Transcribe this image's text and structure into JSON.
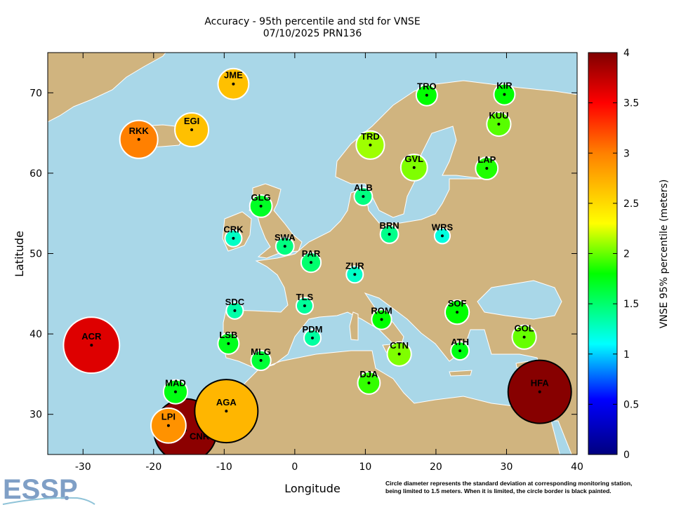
{
  "title": {
    "line1": "Accuracy - 95th percentile and std for VNSE",
    "line2": "07/10/2025 PRN136"
  },
  "logo": "ESSP",
  "note": {
    "line1": "Circle diameter represents the standard deviation at corresponding monitoring station,",
    "line2": "being limited to 1.5 meters. When it is limited, the circle border is black painted."
  },
  "colors": {
    "ocean": "#a9d7e8",
    "land": "#d0b47f",
    "coast": "#ffffff",
    "limited_border": "#000000",
    "normal_border": "#ffffff",
    "logo": "#7f9fc6"
  },
  "chart_data": {
    "type": "scatter",
    "xlabel": "Longitude",
    "ylabel": "Latitude",
    "xlim": [
      -35,
      40
    ],
    "ylim": [
      25,
      75
    ],
    "xticks": [
      -30,
      -20,
      -10,
      0,
      10,
      20,
      30,
      40
    ],
    "yticks": [
      30,
      40,
      50,
      60,
      70
    ],
    "grid": false,
    "colorbar": {
      "label": "VNSE 95% percentile (meters)",
      "range": [
        0,
        4
      ],
      "ticks": [
        "0",
        "0.5",
        "1",
        "1.5",
        "2",
        "2.5",
        "3",
        "3.5",
        "4"
      ],
      "colormap": "jet",
      "stops": [
        {
          "v": 0,
          "color": "#00007f"
        },
        {
          "v": 0.55,
          "color": "#0000ff"
        },
        {
          "v": 1.1,
          "color": "#00ffff"
        },
        {
          "v": 1.8,
          "color": "#00ff00"
        },
        {
          "v": 2.3,
          "color": "#ffff00"
        },
        {
          "v": 3.0,
          "color": "#ff8000"
        },
        {
          "v": 3.5,
          "color": "#ff0000"
        },
        {
          "v": 4,
          "color": "#7f0000"
        }
      ]
    },
    "std_limit_m": 1.5,
    "stations": [
      {
        "name": "CNR",
        "lon": -15.5,
        "lat": 28.0,
        "p95": 3.95,
        "std": 1.5,
        "limited": true
      },
      {
        "name": "AGA",
        "lon": -9.7,
        "lat": 30.4,
        "p95": 2.7,
        "std": 1.5,
        "limited": true
      },
      {
        "name": "HFA",
        "lon": 34.7,
        "lat": 32.8,
        "p95": 3.97,
        "std": 1.5,
        "limited": true
      },
      {
        "name": "ACR",
        "lon": -28.8,
        "lat": 38.6,
        "p95": 3.63,
        "std": 1.33,
        "limited": false
      },
      {
        "name": "RKK",
        "lon": -22.1,
        "lat": 64.2,
        "p95": 3.0,
        "std": 0.9,
        "limited": false
      },
      {
        "name": "LPI",
        "lon": -17.9,
        "lat": 28.6,
        "p95": 2.9,
        "std": 0.83,
        "limited": false
      },
      {
        "name": "EGI",
        "lon": -14.6,
        "lat": 65.4,
        "p95": 2.65,
        "std": 0.8,
        "limited": false
      },
      {
        "name": "JME",
        "lon": -8.7,
        "lat": 71.1,
        "p95": 2.65,
        "std": 0.73,
        "limited": false
      },
      {
        "name": "TRD",
        "lon": 10.7,
        "lat": 63.5,
        "p95": 2.11,
        "std": 0.67,
        "limited": false
      },
      {
        "name": "GVL",
        "lon": 16.9,
        "lat": 60.7,
        "p95": 2.05,
        "std": 0.63,
        "limited": false
      },
      {
        "name": "KUU",
        "lon": 28.9,
        "lat": 66.1,
        "p95": 1.97,
        "std": 0.57,
        "limited": false
      },
      {
        "name": "SOF",
        "lon": 23.0,
        "lat": 42.7,
        "p95": 1.8,
        "std": 0.57,
        "limited": false
      },
      {
        "name": "GOL",
        "lon": 32.5,
        "lat": 39.6,
        "p95": 2.0,
        "std": 0.57,
        "limited": false
      },
      {
        "name": "CTN",
        "lon": 14.8,
        "lat": 37.5,
        "p95": 2.05,
        "std": 0.57,
        "limited": false
      },
      {
        "name": "MAD",
        "lon": -16.9,
        "lat": 32.8,
        "p95": 1.75,
        "std": 0.57,
        "limited": false
      },
      {
        "name": "DJA",
        "lon": 10.5,
        "lat": 33.9,
        "p95": 1.9,
        "std": 0.53,
        "limited": false
      },
      {
        "name": "LAP",
        "lon": 27.2,
        "lat": 60.6,
        "p95": 1.86,
        "std": 0.53,
        "limited": false
      },
      {
        "name": "GLG",
        "lon": -4.8,
        "lat": 55.9,
        "p95": 1.7,
        "std": 0.53,
        "limited": false
      },
      {
        "name": "TRO",
        "lon": 18.7,
        "lat": 69.7,
        "p95": 1.8,
        "std": 0.5,
        "limited": false
      },
      {
        "name": "KIR",
        "lon": 29.7,
        "lat": 69.8,
        "p95": 1.8,
        "std": 0.5,
        "limited": false
      },
      {
        "name": "LSB",
        "lon": -9.4,
        "lat": 38.8,
        "p95": 1.72,
        "std": 0.5,
        "limited": false
      },
      {
        "name": "ROM",
        "lon": 12.3,
        "lat": 41.8,
        "p95": 1.8,
        "std": 0.47,
        "limited": false
      },
      {
        "name": "PAR",
        "lon": 2.3,
        "lat": 48.9,
        "p95": 1.5,
        "std": 0.47,
        "limited": false
      },
      {
        "name": "MLG",
        "lon": -4.8,
        "lat": 36.7,
        "p95": 1.65,
        "std": 0.47,
        "limited": false
      },
      {
        "name": "ALB",
        "lon": 9.7,
        "lat": 57.1,
        "p95": 1.45,
        "std": 0.43,
        "limited": false
      },
      {
        "name": "BRN",
        "lon": 13.4,
        "lat": 52.4,
        "p95": 1.42,
        "std": 0.43,
        "limited": false
      },
      {
        "name": "SWA",
        "lon": -1.4,
        "lat": 50.9,
        "p95": 1.45,
        "std": 0.43,
        "limited": false
      },
      {
        "name": "ATH",
        "lon": 23.4,
        "lat": 37.9,
        "p95": 1.75,
        "std": 0.43,
        "limited": false
      },
      {
        "name": "CRK",
        "lon": -8.7,
        "lat": 51.9,
        "p95": 1.26,
        "std": 0.4,
        "limited": false
      },
      {
        "name": "ZUR",
        "lon": 8.5,
        "lat": 47.4,
        "p95": 1.25,
        "std": 0.4,
        "limited": false
      },
      {
        "name": "TLS",
        "lon": 1.4,
        "lat": 43.5,
        "p95": 1.38,
        "std": 0.4,
        "limited": false
      },
      {
        "name": "SDC",
        "lon": -8.5,
        "lat": 42.9,
        "p95": 1.34,
        "std": 0.4,
        "limited": false
      },
      {
        "name": "PDM",
        "lon": 2.5,
        "lat": 39.5,
        "p95": 1.36,
        "std": 0.4,
        "limited": false
      },
      {
        "name": "WRS",
        "lon": 20.9,
        "lat": 52.2,
        "p95": 1.19,
        "std": 0.37,
        "limited": false
      }
    ]
  }
}
